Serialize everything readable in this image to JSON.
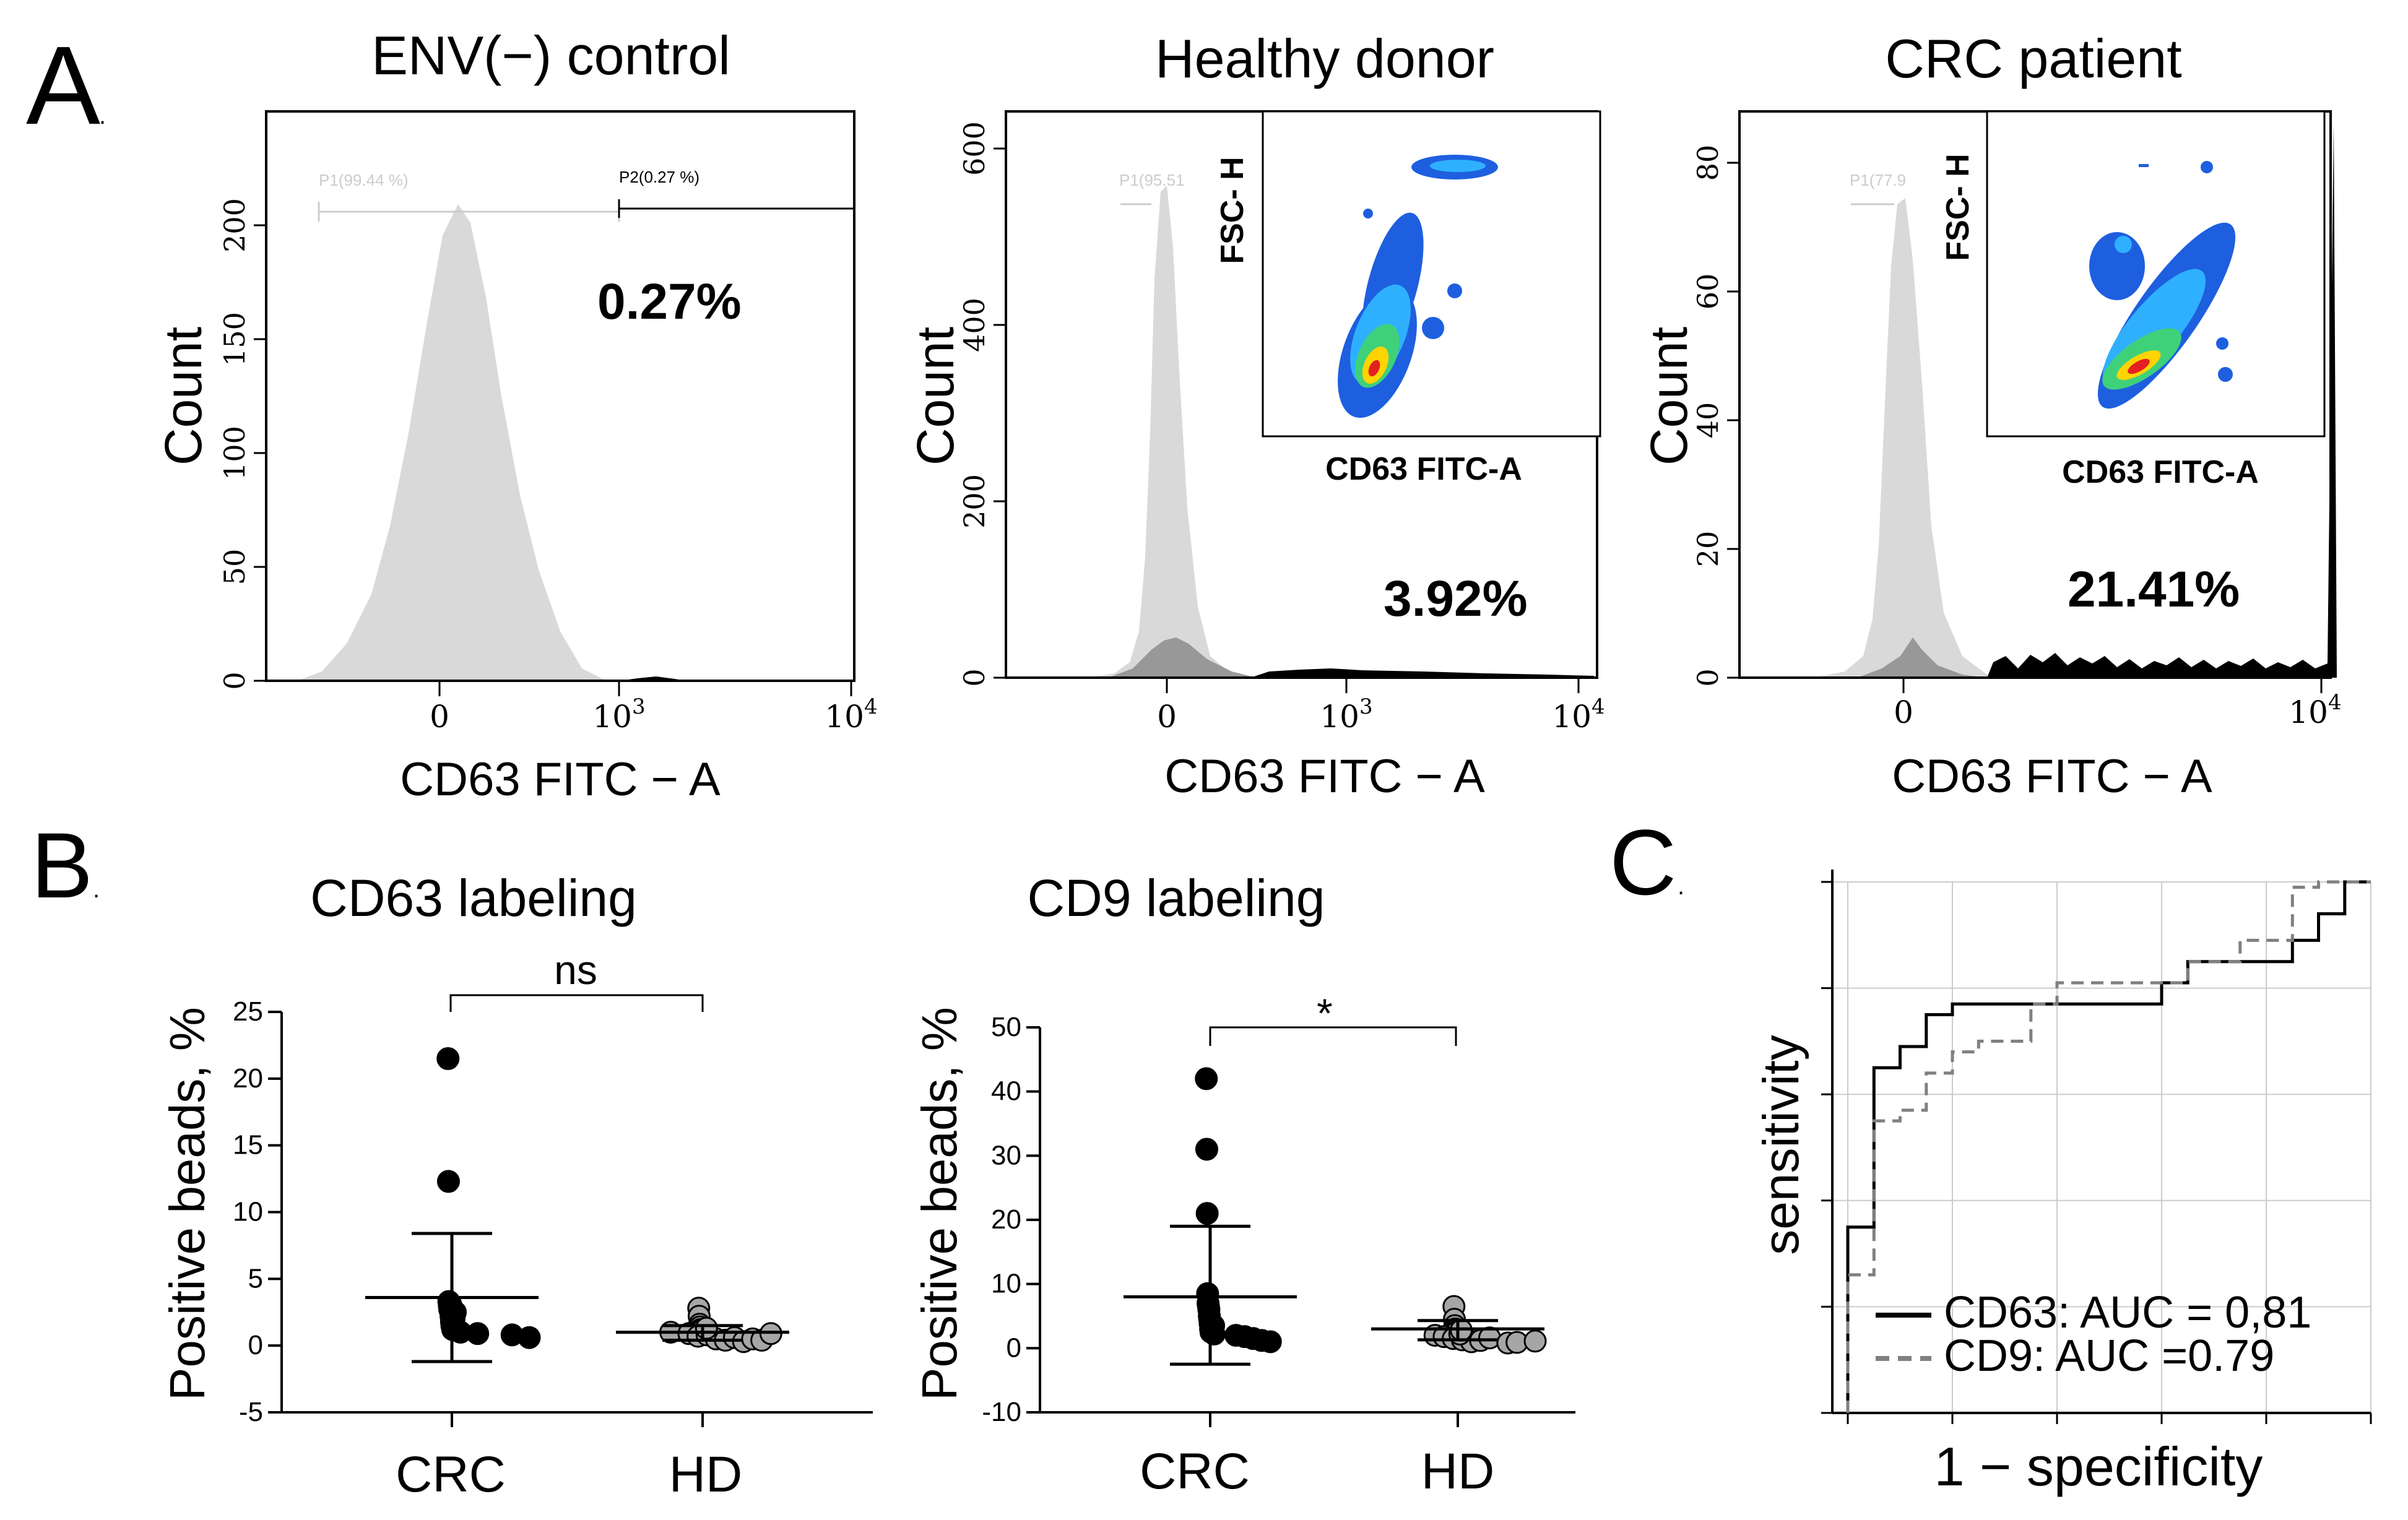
{
  "panel_labels": {
    "a": "A",
    "b": "B",
    "c": "C"
  },
  "chart_data": [
    {
      "type": "histogram",
      "title": "ENV(−) control",
      "xlabel": "CD63 FITC − A",
      "ylabel": "Count",
      "x_ticks": [
        "0",
        "10^3",
        "10^4"
      ],
      "y_ticks": [
        "0",
        "50",
        "100",
        "150",
        "200"
      ],
      "ylim": [
        0,
        250
      ],
      "percent_label": "0.27%",
      "gates": [
        {
          "label": "P1(99.44 %)",
          "percent": 99.44
        },
        {
          "label": "P2(0.27 %)",
          "percent": 0.27
        }
      ],
      "peak_count": 215,
      "peak_x": 0.2
    },
    {
      "type": "histogram",
      "title": "Healthy donor",
      "xlabel": "CD63 FITC − A",
      "ylabel": "Count",
      "x_ticks": [
        "0",
        "10^3",
        "10^4"
      ],
      "y_ticks": [
        "0",
        "200",
        "400",
        "600"
      ],
      "ylim": [
        0,
        650
      ],
      "percent_label": "3.92%",
      "gates": [
        {
          "label": "P1(95.51",
          "percent": 95.51
        }
      ],
      "peak_count": 540,
      "inset": {
        "xlabel": "CD63 FITC-A",
        "ylabel": "FSC- H"
      }
    },
    {
      "type": "histogram",
      "title": "CRC patient",
      "xlabel": "CD63 FITC − A",
      "ylabel": "Count",
      "x_ticks": [
        "0",
        "10^4"
      ],
      "y_ticks": [
        "0",
        "20",
        "40",
        "60",
        "80"
      ],
      "ylim": [
        0,
        88
      ],
      "percent_label": "21.41%",
      "gates": [
        {
          "label": "P1(77.9",
          "percent": 77.9
        }
      ],
      "peak_count": 72,
      "inset": {
        "xlabel": "CD63 FITC-A",
        "ylabel": "FSC- H"
      }
    },
    {
      "type": "scatter",
      "title": "CD63 labeling",
      "ylabel": "Positive beads, %",
      "categories": [
        "CRC",
        "HD"
      ],
      "y_ticks": [
        -5,
        0,
        5,
        10,
        15,
        20,
        25
      ],
      "ylim": [
        -5,
        25
      ],
      "significance": "ns",
      "series": [
        {
          "name": "CRC",
          "color": "#000000",
          "mean": 3.6,
          "sd_low": -1.2,
          "sd_high": 8.4,
          "values": [
            21.5,
            12.3,
            3.3,
            3.0,
            2.7,
            2.8,
            3.1,
            2.2,
            1.8,
            1.5,
            1.0,
            1.2,
            0.9,
            1.7,
            2.0,
            1.4,
            0.8,
            2.5,
            0.6
          ]
        },
        {
          "name": "HD",
          "color": "#a6a6a6",
          "mean": 1.0,
          "sd_low": 0.4,
          "sd_high": 1.5,
          "values": [
            2.8,
            2.2,
            1.6,
            1.4,
            1.2,
            1.0,
            1.1,
            0.9,
            0.7,
            0.8,
            0.5,
            0.4,
            0.6,
            0.3,
            0.5,
            0.4,
            0.9,
            1.3
          ]
        }
      ]
    },
    {
      "type": "scatter",
      "title": "CD9 labeling",
      "ylabel": "Positive beads, %",
      "categories": [
        "CRC",
        "HD"
      ],
      "y_ticks": [
        -10,
        0,
        10,
        20,
        30,
        40,
        50
      ],
      "ylim": [
        -10,
        50
      ],
      "significance": "*",
      "series": [
        {
          "name": "CRC",
          "color": "#000000",
          "mean": 8.0,
          "sd_low": -2.5,
          "sd_high": 19.0,
          "values": [
            42,
            31,
            21,
            8.5,
            7.0,
            6.5,
            6.0,
            5.0,
            4.5,
            3.8,
            3.0,
            2.5,
            2.0,
            1.8,
            1.5,
            1.2,
            1.0,
            3.5,
            2.2
          ]
        },
        {
          "name": "HD",
          "color": "#a6a6a6",
          "mean": 3.0,
          "sd_low": 1.3,
          "sd_high": 4.3,
          "values": [
            6.5,
            4.5,
            3.5,
            3.0,
            2.7,
            2.4,
            2.0,
            1.8,
            1.5,
            1.3,
            1.0,
            1.2,
            1.6,
            2.2,
            0.8,
            0.9,
            2.8,
            1.1
          ]
        }
      ]
    },
    {
      "type": "line",
      "subtype": "roc",
      "xlabel": "1 − specificity",
      "ylabel": "sensitivity",
      "xlim": [
        0,
        1
      ],
      "ylim": [
        0,
        1
      ],
      "series": [
        {
          "name": "CD63: AUC = 0,81",
          "color": "#000000",
          "dash": false,
          "points": [
            [
              0,
              0
            ],
            [
              0,
              0.35
            ],
            [
              0.05,
              0.35
            ],
            [
              0.05,
              0.65
            ],
            [
              0.1,
              0.65
            ],
            [
              0.1,
              0.69
            ],
            [
              0.15,
              0.69
            ],
            [
              0.15,
              0.75
            ],
            [
              0.2,
              0.75
            ],
            [
              0.2,
              0.77
            ],
            [
              0.6,
              0.77
            ],
            [
              0.6,
              0.81
            ],
            [
              0.65,
              0.81
            ],
            [
              0.65,
              0.85
            ],
            [
              0.85,
              0.85
            ],
            [
              0.85,
              0.89
            ],
            [
              0.9,
              0.89
            ],
            [
              0.9,
              0.94
            ],
            [
              0.95,
              0.94
            ],
            [
              0.95,
              1
            ],
            [
              1,
              1
            ]
          ]
        },
        {
          "name": "CD9: AUC =0.79",
          "color": "#808080",
          "dash": true,
          "points": [
            [
              0,
              0
            ],
            [
              0,
              0.26
            ],
            [
              0.05,
              0.26
            ],
            [
              0.05,
              0.55
            ],
            [
              0.1,
              0.55
            ],
            [
              0.1,
              0.57
            ],
            [
              0.15,
              0.57
            ],
            [
              0.15,
              0.64
            ],
            [
              0.2,
              0.64
            ],
            [
              0.2,
              0.68
            ],
            [
              0.25,
              0.68
            ],
            [
              0.25,
              0.7
            ],
            [
              0.35,
              0.7
            ],
            [
              0.35,
              0.77
            ],
            [
              0.4,
              0.77
            ],
            [
              0.4,
              0.81
            ],
            [
              0.65,
              0.81
            ],
            [
              0.65,
              0.85
            ],
            [
              0.75,
              0.85
            ],
            [
              0.75,
              0.89
            ],
            [
              0.85,
              0.89
            ],
            [
              0.85,
              0.99
            ],
            [
              0.9,
              0.99
            ],
            [
              0.9,
              1
            ],
            [
              1,
              1
            ]
          ]
        }
      ]
    }
  ]
}
